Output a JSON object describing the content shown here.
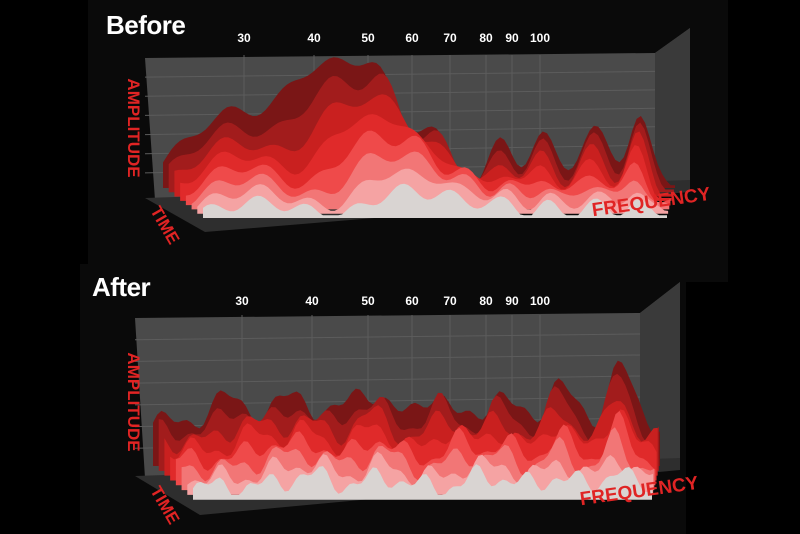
{
  "chart_data": [
    {
      "type": "area",
      "title": "Before",
      "xlabel": "FREQUENCY",
      "ylabel": "AMPLITUDE",
      "zlabel": "TIME",
      "x_ticks": [
        "30",
        "40",
        "50",
        "60",
        "70",
        "80",
        "90",
        "100"
      ],
      "series_colors": [
        "#7a1616",
        "#a21c1c",
        "#c9201f",
        "#e02a2a",
        "#ef4a4a",
        "#f27676",
        "#f5a3a3",
        "#d9d4d2"
      ]
    },
    {
      "type": "area",
      "title": "After",
      "xlabel": "FREQUENCY",
      "ylabel": "AMPLITUDE",
      "zlabel": "TIME",
      "x_ticks": [
        "30",
        "40",
        "50",
        "60",
        "70",
        "80",
        "90",
        "100"
      ],
      "series_colors": [
        "#7a1616",
        "#a21c1c",
        "#c9201f",
        "#e02a2a",
        "#ef4a4a",
        "#f27676",
        "#f5a3a3",
        "#d9d4d2"
      ]
    }
  ]
}
